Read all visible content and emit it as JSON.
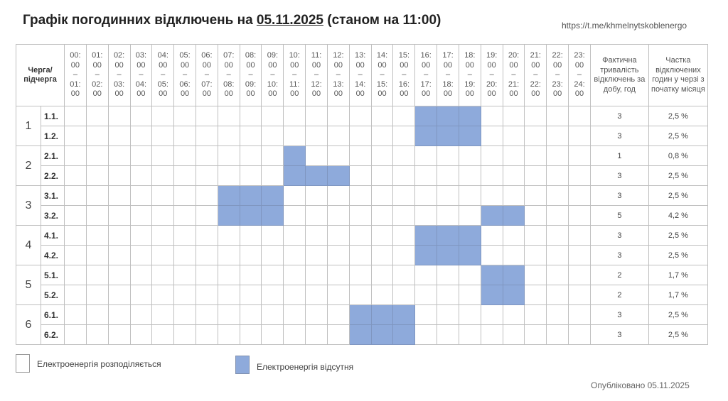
{
  "title": {
    "prefix": "Графік погодинних відключень на ",
    "date": "05.11.2025",
    "suffix": " (станом на 11:00)"
  },
  "link": "https://t.me/khmelnytskoblenergo",
  "table": {
    "queue_header": "Черга/ підчерга",
    "hours": [
      "00:",
      "01:",
      "02:",
      "03:",
      "04:",
      "05:",
      "06:",
      "07:",
      "08:",
      "09:",
      "10:",
      "11:",
      "12:",
      "13:",
      "14:",
      "15:",
      "16:",
      "17:",
      "18:",
      "19:",
      "20:",
      "21:",
      "22:",
      "23:",
      "24:"
    ],
    "minutes": "00",
    "dash": "–",
    "duration_header": "Фактична тривалість відключень за добу, год",
    "share_header": "Частка відключених годин у черзі з початку місяця",
    "groups": [
      {
        "label": "1",
        "subs": [
          {
            "label": "1.1.",
            "off_hours": [
              16,
              17,
              18
            ],
            "duration": "3",
            "share": "2,5 %"
          },
          {
            "label": "1.2.",
            "off_hours": [
              16,
              17,
              18
            ],
            "duration": "3",
            "share": "2,5 %"
          }
        ]
      },
      {
        "label": "2",
        "subs": [
          {
            "label": "2.1.",
            "off_hours": [
              10
            ],
            "duration": "1",
            "share": "0,8 %"
          },
          {
            "label": "2.2.",
            "off_hours": [
              10,
              11,
              12
            ],
            "duration": "3",
            "share": "2,5 %"
          }
        ]
      },
      {
        "label": "3",
        "subs": [
          {
            "label": "3.1.",
            "off_hours": [
              7,
              8,
              9
            ],
            "duration": "3",
            "share": "2,5 %"
          },
          {
            "label": "3.2.",
            "off_hours": [
              7,
              8,
              9,
              19,
              20
            ],
            "duration": "5",
            "share": "4,2 %"
          }
        ]
      },
      {
        "label": "4",
        "subs": [
          {
            "label": "4.1.",
            "off_hours": [
              16,
              17,
              18
            ],
            "duration": "3",
            "share": "2,5 %"
          },
          {
            "label": "4.2.",
            "off_hours": [
              16,
              17,
              18
            ],
            "duration": "3",
            "share": "2,5 %"
          }
        ]
      },
      {
        "label": "5",
        "subs": [
          {
            "label": "5.1.",
            "off_hours": [
              19,
              20
            ],
            "duration": "2",
            "share": "1,7 %"
          },
          {
            "label": "5.2.",
            "off_hours": [
              19,
              20
            ],
            "duration": "2",
            "share": "1,7 %"
          }
        ]
      },
      {
        "label": "6",
        "subs": [
          {
            "label": "6.1.",
            "off_hours": [
              13,
              14,
              15
            ],
            "duration": "3",
            "share": "2,5 %"
          },
          {
            "label": "6.2.",
            "off_hours": [
              13,
              14,
              15
            ],
            "duration": "3",
            "share": "2,5 %"
          }
        ]
      }
    ]
  },
  "legend": {
    "on": "Електроенергія розподіляється",
    "off": "Електроенергія відсутня"
  },
  "colors": {
    "off": "#8eaadb",
    "on": "#ffffff"
  },
  "published": "Опубліковано 05.11.2025"
}
